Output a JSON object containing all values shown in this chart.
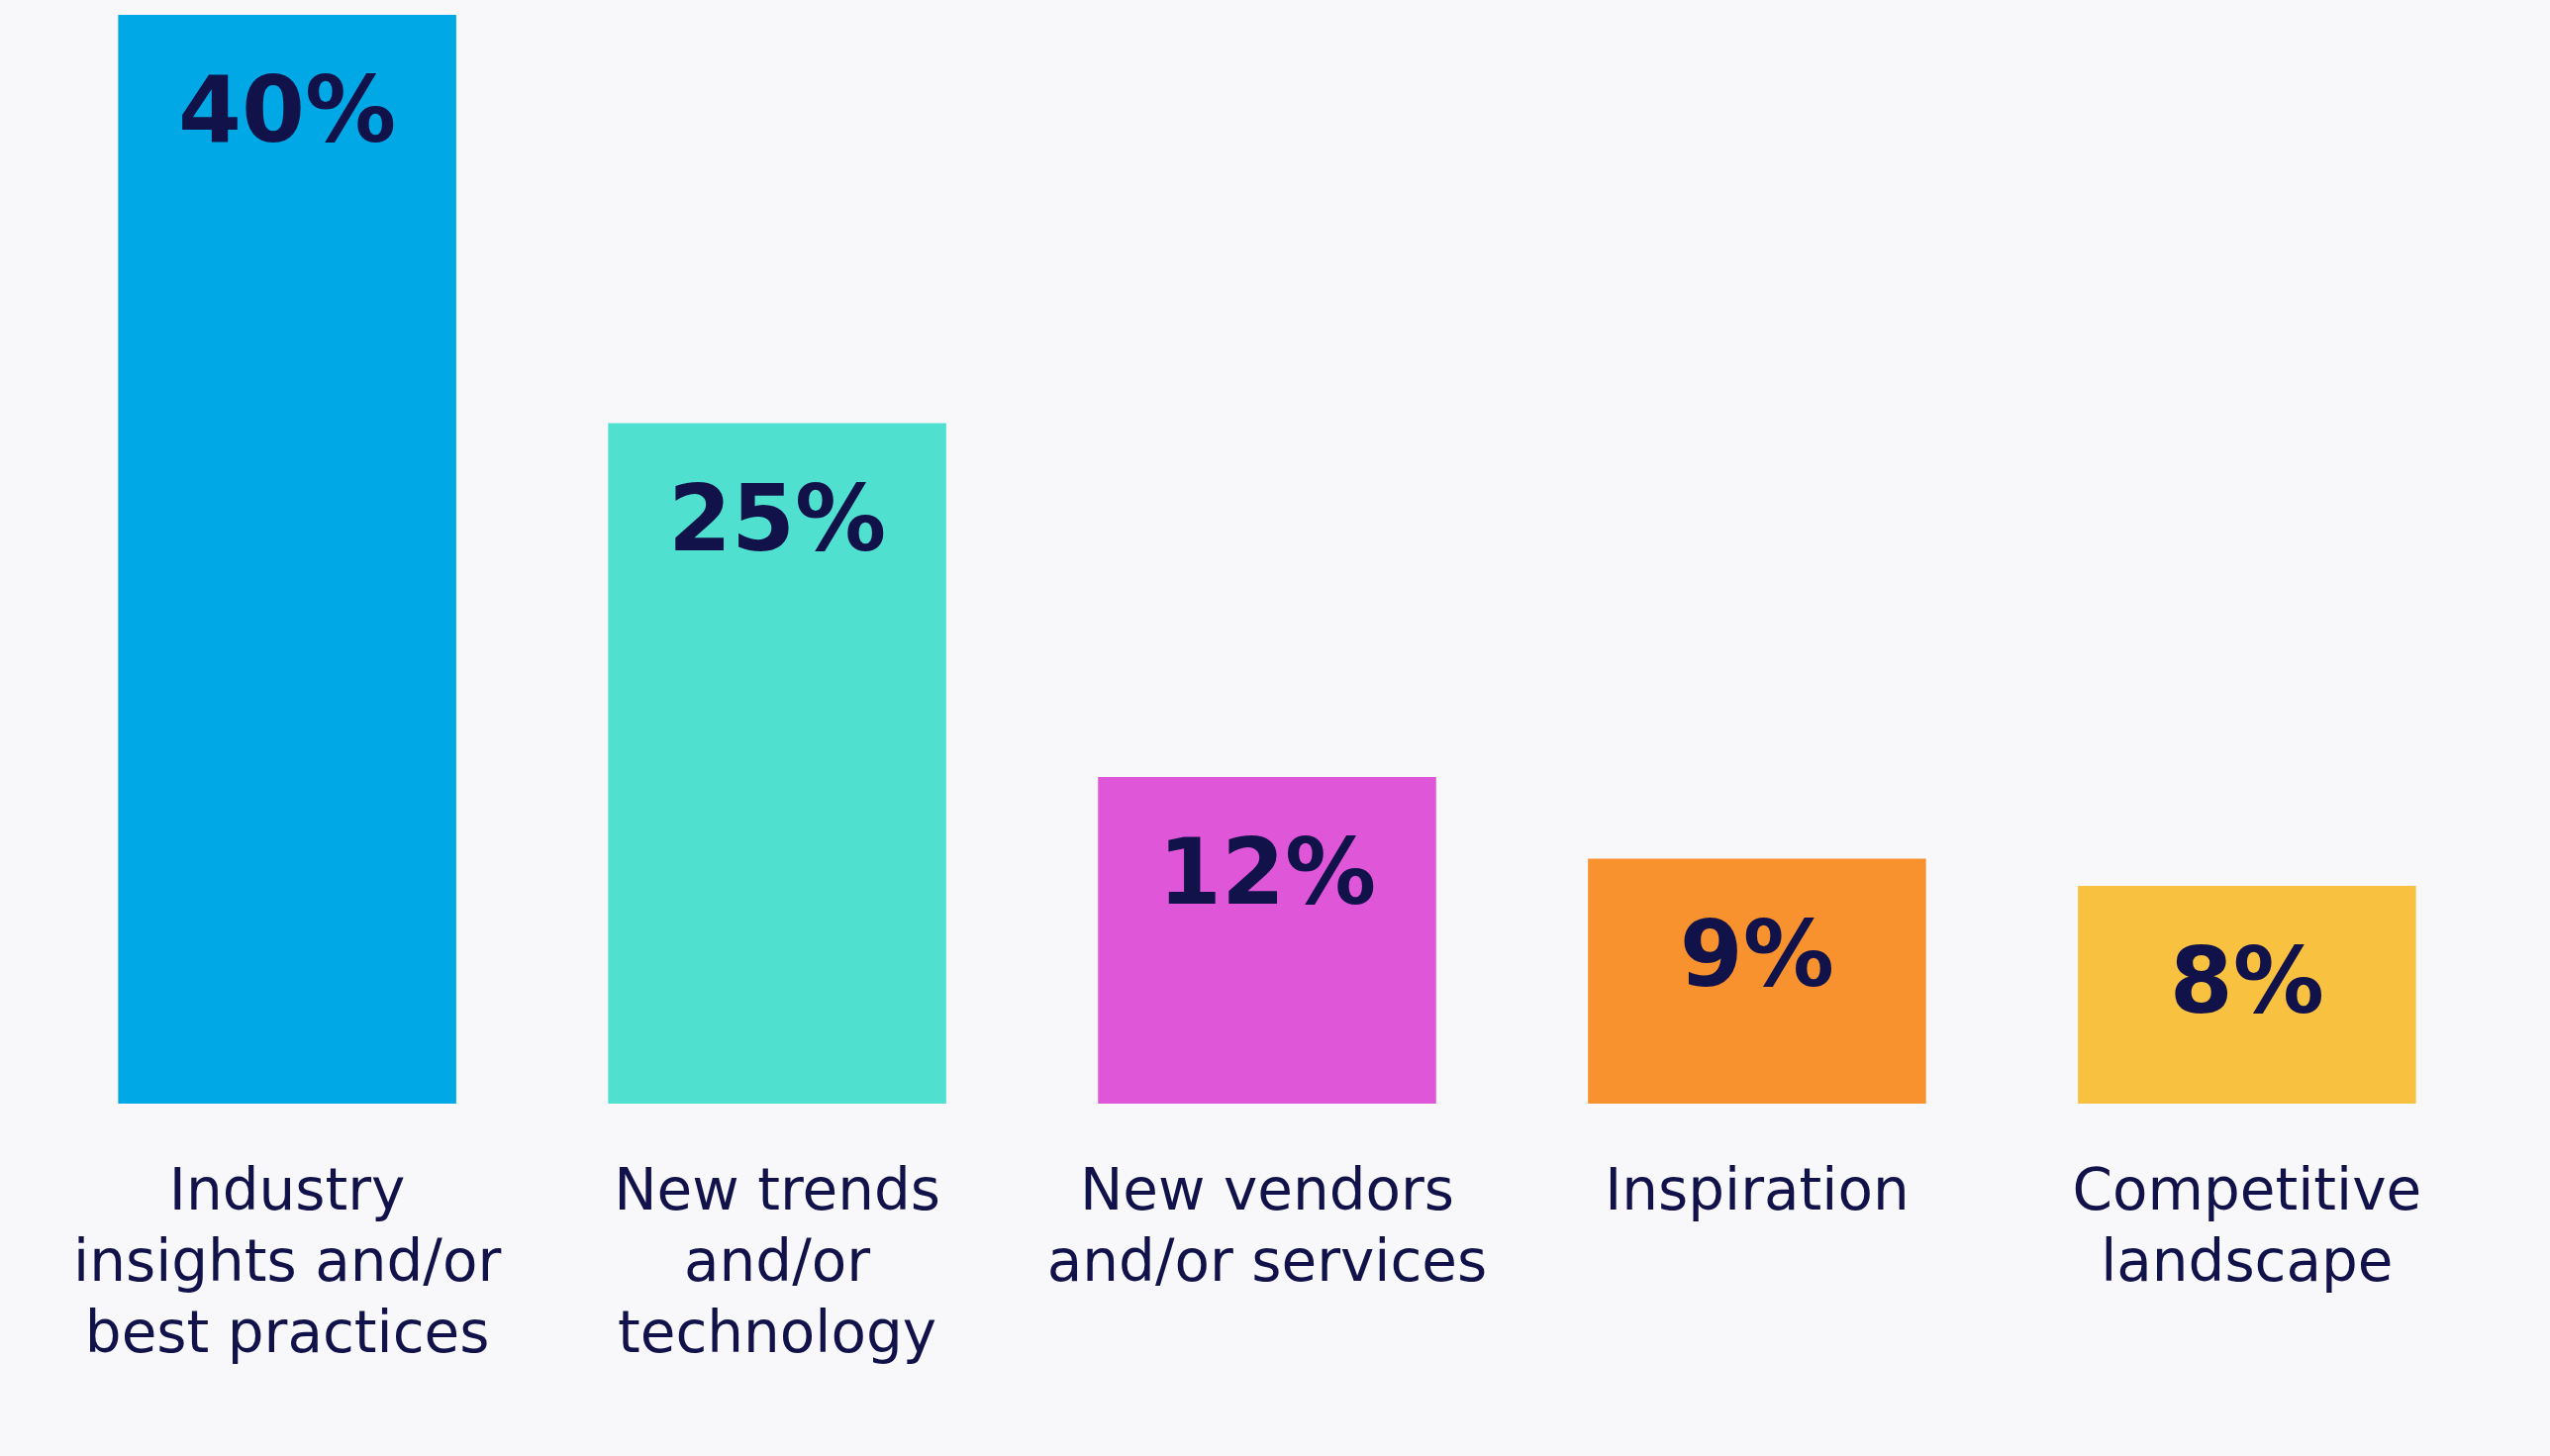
{
  "chart_data": {
    "type": "bar",
    "categories": [
      "Industry insights and/or best practices",
      "New trends and/or technology",
      "New vendors and/or services",
      "Inspiration",
      "Competitive landscape"
    ],
    "values": [
      40,
      25,
      12,
      9,
      8
    ],
    "colors": [
      "#00a9e6",
      "#50e0d0",
      "#e056d9",
      "#f7922f",
      "#f9c140"
    ],
    "value_labels": [
      "40%",
      "25%",
      "12%",
      "9%",
      "8%"
    ],
    "data_labels": false
  }
}
